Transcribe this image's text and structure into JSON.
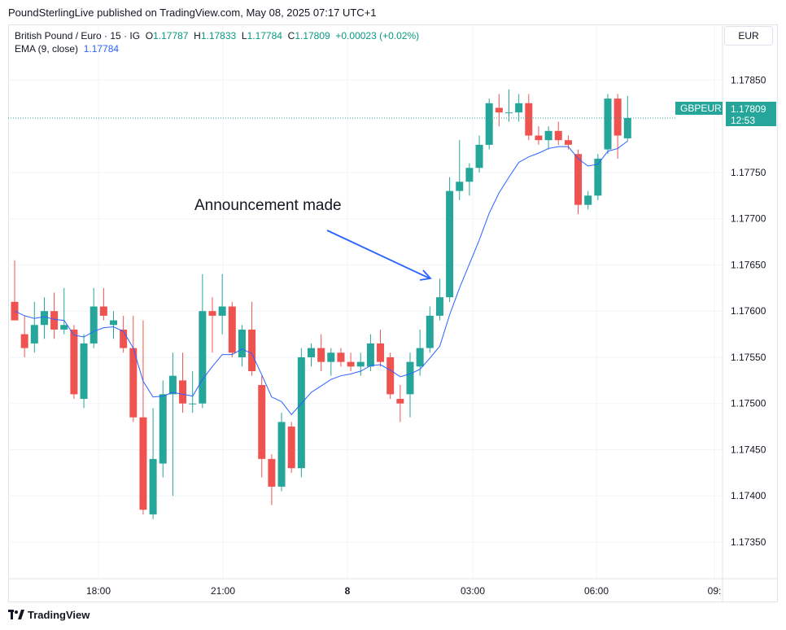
{
  "publisher_line": "PoundSterlingLive published on TradingView.com, May 08, 2025 07:17 UTC+1",
  "legend": {
    "symbol": "British Pound / Euro · 15 · IG",
    "o_label": "O",
    "o_value": "1.17787",
    "h_label": "H",
    "h_value": "1.17833",
    "l_label": "L",
    "l_value": "1.17784",
    "c_label": "C",
    "c_value": "1.17809",
    "change": "+0.00023 (+0.02%)",
    "ema_label": "EMA (9, close)",
    "ema_value": "1.17784"
  },
  "currency_button": "EUR",
  "price_tag": {
    "symbol": "GBPEUR",
    "price": "1.17809",
    "countdown": "12:53"
  },
  "annotation": "Announcement made",
  "footer_brand": "TradingView",
  "colors": {
    "up": "#26a69a",
    "down": "#ef5350",
    "ema": "#2962ff",
    "grid": "#f0f3fa",
    "axis_text": "#131722"
  },
  "chart_data": {
    "type": "candlestick",
    "y_ticks": [
      "1.17850",
      "1.17750",
      "1.17700",
      "1.17650",
      "1.17600",
      "1.17550",
      "1.17500",
      "1.17450",
      "1.17400",
      "1.17350"
    ],
    "x_ticks": [
      "18:00",
      "21:00",
      "8",
      "03:00",
      "06:00",
      "09:"
    ],
    "ylim": [
      1.17313,
      1.17905
    ],
    "last_price": 1.17809,
    "candles": [
      {
        "o": 1.1761,
        "h": 1.17655,
        "l": 1.1759,
        "c": 1.1759
      },
      {
        "o": 1.17575,
        "h": 1.17595,
        "l": 1.1755,
        "c": 1.1756
      },
      {
        "o": 1.17565,
        "h": 1.1761,
        "l": 1.17555,
        "c": 1.17585
      },
      {
        "o": 1.17585,
        "h": 1.17615,
        "l": 1.1757,
        "c": 1.176
      },
      {
        "o": 1.176,
        "h": 1.1762,
        "l": 1.1757,
        "c": 1.1758
      },
      {
        "o": 1.1758,
        "h": 1.17625,
        "l": 1.17575,
        "c": 1.17585
      },
      {
        "o": 1.1758,
        "h": 1.17585,
        "l": 1.17505,
        "c": 1.1751
      },
      {
        "o": 1.17505,
        "h": 1.17575,
        "l": 1.17495,
        "c": 1.17565
      },
      {
        "o": 1.17565,
        "h": 1.17625,
        "l": 1.1756,
        "c": 1.17605
      },
      {
        "o": 1.17605,
        "h": 1.17625,
        "l": 1.1759,
        "c": 1.17595
      },
      {
        "o": 1.17585,
        "h": 1.176,
        "l": 1.1757,
        "c": 1.1759
      },
      {
        "o": 1.1758,
        "h": 1.17595,
        "l": 1.17555,
        "c": 1.1756
      },
      {
        "o": 1.1756,
        "h": 1.17595,
        "l": 1.1748,
        "c": 1.17485
      },
      {
        "o": 1.17485,
        "h": 1.1759,
        "l": 1.1738,
        "c": 1.17385
      },
      {
        "o": 1.1738,
        "h": 1.17495,
        "l": 1.17375,
        "c": 1.1744
      },
      {
        "o": 1.17435,
        "h": 1.17525,
        "l": 1.1742,
        "c": 1.1751
      },
      {
        "o": 1.1751,
        "h": 1.17555,
        "l": 1.174,
        "c": 1.1753
      },
      {
        "o": 1.17525,
        "h": 1.17555,
        "l": 1.1749,
        "c": 1.175
      },
      {
        "o": 1.175,
        "h": 1.17535,
        "l": 1.1749,
        "c": 1.175
      },
      {
        "o": 1.175,
        "h": 1.1764,
        "l": 1.17495,
        "c": 1.176
      },
      {
        "o": 1.176,
        "h": 1.17615,
        "l": 1.17555,
        "c": 1.17595
      },
      {
        "o": 1.17595,
        "h": 1.1764,
        "l": 1.17575,
        "c": 1.17605
      },
      {
        "o": 1.17605,
        "h": 1.1761,
        "l": 1.1755,
        "c": 1.17555
      },
      {
        "o": 1.1755,
        "h": 1.17585,
        "l": 1.1754,
        "c": 1.1758
      },
      {
        "o": 1.1758,
        "h": 1.1761,
        "l": 1.1753,
        "c": 1.17535
      },
      {
        "o": 1.1752,
        "h": 1.1753,
        "l": 1.1742,
        "c": 1.1744
      },
      {
        "o": 1.1744,
        "h": 1.17445,
        "l": 1.1739,
        "c": 1.1741
      },
      {
        "o": 1.1741,
        "h": 1.1749,
        "l": 1.17405,
        "c": 1.1748
      },
      {
        "o": 1.17475,
        "h": 1.1748,
        "l": 1.17425,
        "c": 1.1743
      },
      {
        "o": 1.1743,
        "h": 1.1756,
        "l": 1.1742,
        "c": 1.1755
      },
      {
        "o": 1.1755,
        "h": 1.17565,
        "l": 1.1754,
        "c": 1.1756
      },
      {
        "o": 1.1756,
        "h": 1.17575,
        "l": 1.17535,
        "c": 1.17545
      },
      {
        "o": 1.17545,
        "h": 1.1756,
        "l": 1.1753,
        "c": 1.17555
      },
      {
        "o": 1.17555,
        "h": 1.1756,
        "l": 1.1754,
        "c": 1.17545
      },
      {
        "o": 1.17545,
        "h": 1.17555,
        "l": 1.17535,
        "c": 1.1754
      },
      {
        "o": 1.1754,
        "h": 1.17555,
        "l": 1.1753,
        "c": 1.17545
      },
      {
        "o": 1.1754,
        "h": 1.17575,
        "l": 1.17535,
        "c": 1.17565
      },
      {
        "o": 1.17565,
        "h": 1.1758,
        "l": 1.1754,
        "c": 1.17545
      },
      {
        "o": 1.1755,
        "h": 1.17555,
        "l": 1.17505,
        "c": 1.1751
      },
      {
        "o": 1.17505,
        "h": 1.1752,
        "l": 1.1748,
        "c": 1.175
      },
      {
        "o": 1.1751,
        "h": 1.17555,
        "l": 1.17485,
        "c": 1.17545
      },
      {
        "o": 1.1754,
        "h": 1.1758,
        "l": 1.1753,
        "c": 1.1756
      },
      {
        "o": 1.1756,
        "h": 1.17605,
        "l": 1.17555,
        "c": 1.17595
      },
      {
        "o": 1.17595,
        "h": 1.17635,
        "l": 1.1759,
        "c": 1.17615
      },
      {
        "o": 1.17615,
        "h": 1.17745,
        "l": 1.1761,
        "c": 1.1773
      },
      {
        "o": 1.1773,
        "h": 1.17785,
        "l": 1.1772,
        "c": 1.1774
      },
      {
        "o": 1.1774,
        "h": 1.1776,
        "l": 1.17725,
        "c": 1.17755
      },
      {
        "o": 1.17755,
        "h": 1.1779,
        "l": 1.1775,
        "c": 1.1778
      },
      {
        "o": 1.1778,
        "h": 1.1783,
        "l": 1.17775,
        "c": 1.17825
      },
      {
        "o": 1.1782,
        "h": 1.17835,
        "l": 1.178,
        "c": 1.17815
      },
      {
        "o": 1.17815,
        "h": 1.1784,
        "l": 1.17805,
        "c": 1.17815
      },
      {
        "o": 1.17815,
        "h": 1.17835,
        "l": 1.17805,
        "c": 1.17825
      },
      {
        "o": 1.17825,
        "h": 1.17835,
        "l": 1.17785,
        "c": 1.1779
      },
      {
        "o": 1.1779,
        "h": 1.178,
        "l": 1.1778,
        "c": 1.17785
      },
      {
        "o": 1.17785,
        "h": 1.178,
        "l": 1.17775,
        "c": 1.17795
      },
      {
        "o": 1.17795,
        "h": 1.17805,
        "l": 1.1778,
        "c": 1.17785
      },
      {
        "o": 1.17785,
        "h": 1.1779,
        "l": 1.17775,
        "c": 1.1778
      },
      {
        "o": 1.1777,
        "h": 1.17775,
        "l": 1.17705,
        "c": 1.17715
      },
      {
        "o": 1.17715,
        "h": 1.1773,
        "l": 1.1771,
        "c": 1.17725
      },
      {
        "o": 1.17725,
        "h": 1.1777,
        "l": 1.1772,
        "c": 1.17765
      },
      {
        "o": 1.17775,
        "h": 1.17835,
        "l": 1.1777,
        "c": 1.1783
      },
      {
        "o": 1.1783,
        "h": 1.17835,
        "l": 1.17765,
        "c": 1.1779
      },
      {
        "o": 1.17787,
        "h": 1.17833,
        "l": 1.17784,
        "c": 1.17809
      }
    ],
    "ema": [
      1.176,
      1.17595,
      1.17592,
      1.17594,
      1.17591,
      1.1759,
      1.17574,
      1.17572,
      1.17578,
      1.17582,
      1.17583,
      1.17578,
      1.1756,
      1.17524,
      1.17507,
      1.17508,
      1.17512,
      1.1751,
      1.17508,
      1.17526,
      1.1754,
      1.17553,
      1.17553,
      1.17559,
      1.17554,
      1.17531,
      1.17507,
      1.17502,
      1.17488,
      1.175,
      1.17512,
      1.17519,
      1.17526,
      1.1753,
      1.17532,
      1.17535,
      1.17541,
      1.17542,
      1.17536,
      1.17529,
      1.17532,
      1.17537,
      1.17549,
      1.17562,
      1.17596,
      1.17625,
      1.17651,
      1.17677,
      1.17706,
      1.17728,
      1.17745,
      1.17761,
      1.17767,
      1.17771,
      1.17776,
      1.17778,
      1.17778,
      1.17765,
      1.17757,
      1.17759,
      1.17773,
      1.17776,
      1.17784
    ]
  }
}
